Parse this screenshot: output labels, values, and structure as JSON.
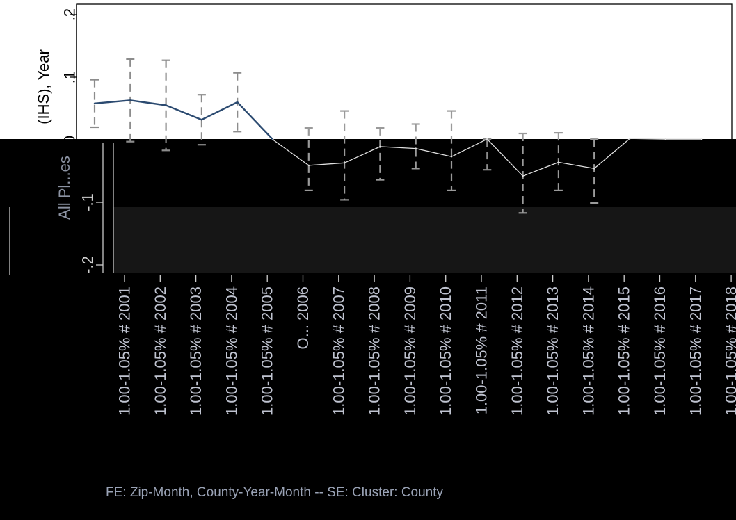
{
  "chart_data": {
    "type": "line",
    "title": "",
    "ylabel": "(IHS), Year",
    "ylabel_lower": "All Pl...es",
    "xlabel": "",
    "ylim": [
      -0.2,
      0.2
    ],
    "yticks": [
      {
        "value": 0.2,
        "label": ".2"
      },
      {
        "value": 0.1,
        "label": ".1"
      },
      {
        "value": 0,
        "label": "0"
      },
      {
        "value": -0.1,
        "label": "-.1"
      },
      {
        "value": -0.2,
        "label": "-.2"
      }
    ],
    "grid": false,
    "categories": [
      "1.00-1.05% # 2001",
      "1.00-1.05% # 2002",
      "1.00-1.05% # 2003",
      "1.00-1.05% # 2004",
      "1.00-1.05% # 2005",
      "O... 2006",
      "1.00-1.05% # 2007",
      "1.00-1.05% # 2008",
      "1.00-1.05% # 2009",
      "1.00-1.05% # 2010",
      "1.00-1.05% # 2011",
      "1.00-1.05% # 2012",
      "1.00-1.05% # 2013",
      "1.00-1.05% # 2014",
      "1.00-1.05% # 2015",
      "1.00-1.05% # 2016",
      "1.00-1.05% # 2017",
      "1.00-1.05% # 2018"
    ],
    "series": [
      {
        "values": [
          0.058,
          0.063,
          0.055,
          0.032,
          0.06,
          0,
          -0.041,
          -0.037,
          -0.011,
          -0.014,
          -0.027,
          0.001,
          -0.058,
          -0.036,
          -0.046,
          0.002,
          0.001,
          0.001
        ],
        "ci_low": [
          0.02,
          -0.003,
          -0.017,
          -0.008,
          0.013,
          0,
          -0.081,
          -0.096,
          -0.064,
          -0.046,
          -0.081,
          -0.048,
          -0.117,
          -0.081,
          -0.101,
          0.002,
          0.001,
          0.001
        ],
        "ci_high": [
          0.096,
          0.129,
          0.127,
          0.072,
          0.107,
          0,
          0.019,
          0.046,
          0.019,
          0.025,
          0.046,
          0.001,
          0.01,
          0.011,
          0.001,
          0.002,
          0.001,
          0.001
        ]
      }
    ],
    "colors": {
      "line_top": "#2b4a70",
      "line_bottom": "#e0e0e0",
      "ci_top": "#8c8c8c",
      "ci_bottom": "#9a9a9a"
    }
  },
  "footnote": "FE: Zip-Month, County-Year-Month -- SE: Cluster: County"
}
